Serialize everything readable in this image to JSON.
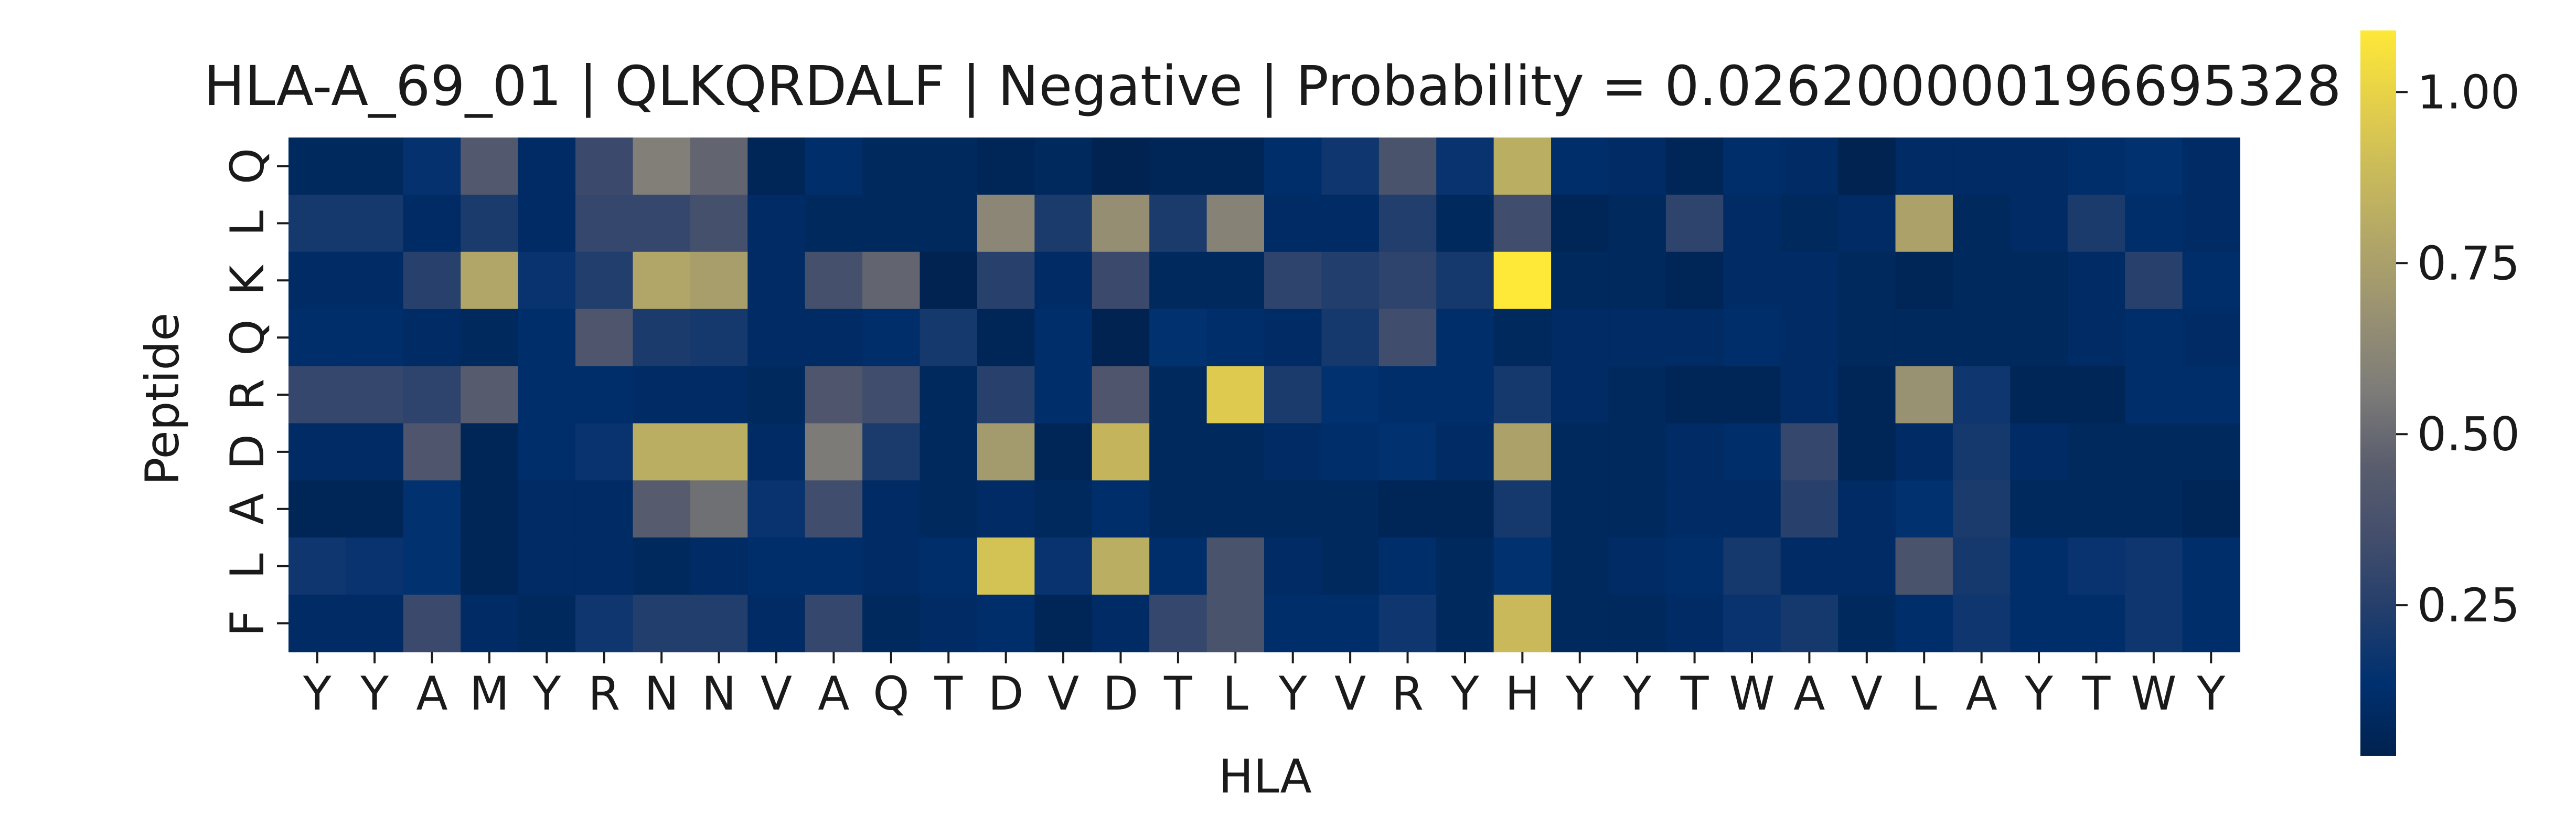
{
  "chart_data": {
    "type": "heatmap",
    "title": "HLA-A_69_01 | QLKQRDALF | Negative | Probability = 0.026200000196695328",
    "xlabel": "HLA",
    "ylabel": "Peptide",
    "x_categories": [
      "Y",
      "Y",
      "A",
      "M",
      "Y",
      "R",
      "N",
      "N",
      "V",
      "A",
      "Q",
      "T",
      "D",
      "V",
      "D",
      "T",
      "L",
      "Y",
      "V",
      "R",
      "Y",
      "H",
      "Y",
      "Y",
      "T",
      "W",
      "A",
      "V",
      "L",
      "A",
      "Y",
      "T",
      "W",
      "Y"
    ],
    "y_categories": [
      "Q",
      "L",
      "K",
      "Q",
      "R",
      "D",
      "A",
      "L",
      "F"
    ],
    "colormap": "cividis",
    "colorbar": {
      "vmin": 0.03,
      "vmax": 1.09,
      "ticks": [
        0.25,
        0.5,
        0.75,
        1.0
      ],
      "tick_labels": [
        "0.25",
        "0.50",
        "0.75",
        "1.00"
      ]
    },
    "values": [
      [
        0.08,
        0.08,
        0.15,
        0.42,
        0.1,
        0.32,
        0.58,
        0.48,
        0.06,
        0.12,
        0.08,
        0.08,
        0.06,
        0.08,
        0.04,
        0.06,
        0.06,
        0.12,
        0.18,
        0.38,
        0.16,
        0.82,
        0.12,
        0.1,
        0.06,
        0.12,
        0.1,
        0.04,
        0.1,
        0.1,
        0.1,
        0.12,
        0.14,
        0.1
      ],
      [
        0.2,
        0.2,
        0.1,
        0.22,
        0.1,
        0.3,
        0.3,
        0.36,
        0.1,
        0.08,
        0.08,
        0.08,
        0.62,
        0.22,
        0.66,
        0.22,
        0.6,
        0.1,
        0.1,
        0.24,
        0.08,
        0.34,
        0.06,
        0.08,
        0.28,
        0.1,
        0.08,
        0.1,
        0.76,
        0.08,
        0.1,
        0.22,
        0.12,
        0.1
      ],
      [
        0.1,
        0.1,
        0.26,
        0.78,
        0.16,
        0.24,
        0.78,
        0.74,
        0.1,
        0.36,
        0.48,
        0.04,
        0.26,
        0.1,
        0.32,
        0.08,
        0.08,
        0.28,
        0.24,
        0.28,
        0.2,
        1.09,
        0.08,
        0.08,
        0.06,
        0.1,
        0.1,
        0.08,
        0.06,
        0.08,
        0.08,
        0.1,
        0.26,
        0.12
      ],
      [
        0.12,
        0.12,
        0.1,
        0.08,
        0.12,
        0.4,
        0.22,
        0.2,
        0.1,
        0.1,
        0.12,
        0.2,
        0.06,
        0.12,
        0.04,
        0.14,
        0.12,
        0.1,
        0.2,
        0.34,
        0.12,
        0.08,
        0.1,
        0.1,
        0.1,
        0.12,
        0.1,
        0.08,
        0.08,
        0.08,
        0.08,
        0.1,
        0.12,
        0.1
      ],
      [
        0.3,
        0.3,
        0.28,
        0.44,
        0.12,
        0.12,
        0.1,
        0.1,
        0.08,
        0.4,
        0.34,
        0.08,
        0.26,
        0.12,
        0.4,
        0.08,
        0.96,
        0.22,
        0.14,
        0.12,
        0.12,
        0.2,
        0.1,
        0.08,
        0.06,
        0.06,
        0.1,
        0.06,
        0.68,
        0.18,
        0.06,
        0.06,
        0.12,
        0.12
      ],
      [
        0.1,
        0.1,
        0.4,
        0.06,
        0.12,
        0.16,
        0.82,
        0.82,
        0.1,
        0.56,
        0.22,
        0.08,
        0.72,
        0.06,
        0.86,
        0.08,
        0.08,
        0.1,
        0.12,
        0.14,
        0.1,
        0.76,
        0.08,
        0.08,
        0.1,
        0.12,
        0.3,
        0.06,
        0.1,
        0.2,
        0.1,
        0.08,
        0.08,
        0.08
      ],
      [
        0.06,
        0.06,
        0.14,
        0.06,
        0.1,
        0.1,
        0.44,
        0.52,
        0.16,
        0.34,
        0.1,
        0.08,
        0.1,
        0.08,
        0.12,
        0.08,
        0.08,
        0.08,
        0.08,
        0.06,
        0.06,
        0.2,
        0.08,
        0.08,
        0.1,
        0.1,
        0.26,
        0.1,
        0.14,
        0.22,
        0.08,
        0.08,
        0.08,
        0.06
      ],
      [
        0.18,
        0.16,
        0.14,
        0.06,
        0.1,
        0.1,
        0.08,
        0.1,
        0.12,
        0.12,
        0.1,
        0.12,
        0.92,
        0.16,
        0.82,
        0.12,
        0.38,
        0.1,
        0.08,
        0.12,
        0.08,
        0.14,
        0.08,
        0.1,
        0.12,
        0.2,
        0.1,
        0.1,
        0.38,
        0.2,
        0.12,
        0.16,
        0.18,
        0.12
      ],
      [
        0.1,
        0.1,
        0.32,
        0.1,
        0.08,
        0.18,
        0.24,
        0.24,
        0.1,
        0.3,
        0.08,
        0.1,
        0.12,
        0.06,
        0.1,
        0.3,
        0.38,
        0.12,
        0.12,
        0.18,
        0.08,
        0.88,
        0.08,
        0.08,
        0.1,
        0.16,
        0.2,
        0.08,
        0.12,
        0.18,
        0.12,
        0.12,
        0.18,
        0.12
      ]
    ]
  }
}
